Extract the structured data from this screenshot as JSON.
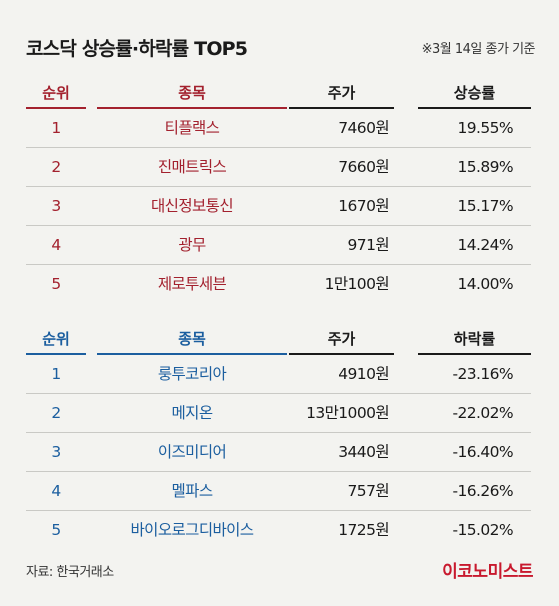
{
  "title": "코스닥 상승률·하락률 TOP5",
  "note": "※3월 14일 종가 기준",
  "gainers": {
    "headers": {
      "rank": "순위",
      "name": "종목",
      "price": "주가",
      "rate": "상승률"
    },
    "rows": [
      {
        "rank": "1",
        "name": "티플랙스",
        "price": "7460원",
        "rate": "19.55%"
      },
      {
        "rank": "2",
        "name": "진매트릭스",
        "price": "7660원",
        "rate": "15.89%"
      },
      {
        "rank": "3",
        "name": "대신정보통신",
        "price": "1670원",
        "rate": "15.17%"
      },
      {
        "rank": "4",
        "name": "광무",
        "price": "971원",
        "rate": "14.24%"
      },
      {
        "rank": "5",
        "name": "제로투세븐",
        "price": "1만100원",
        "rate": "14.00%"
      }
    ]
  },
  "losers": {
    "headers": {
      "rank": "순위",
      "name": "종목",
      "price": "주가",
      "rate": "하락률"
    },
    "rows": [
      {
        "rank": "1",
        "name": "룽투코리아",
        "price": "4910원",
        "rate": "-23.16%"
      },
      {
        "rank": "2",
        "name": "메지온",
        "price": "13만1000원",
        "rate": "-22.02%"
      },
      {
        "rank": "3",
        "name": "이즈미디어",
        "price": "3440원",
        "rate": "-16.40%"
      },
      {
        "rank": "4",
        "name": "멜파스",
        "price": "757원",
        "rate": "-16.26%"
      },
      {
        "rank": "5",
        "name": "바이오로그디바이스",
        "price": "1725원",
        "rate": "-15.02%"
      }
    ]
  },
  "source": "자료: 한국거래소",
  "logo": "이코노미스트",
  "colors": {
    "gain": "#a3212e",
    "loss": "#1b5e9f",
    "logo": "#c8192e"
  }
}
